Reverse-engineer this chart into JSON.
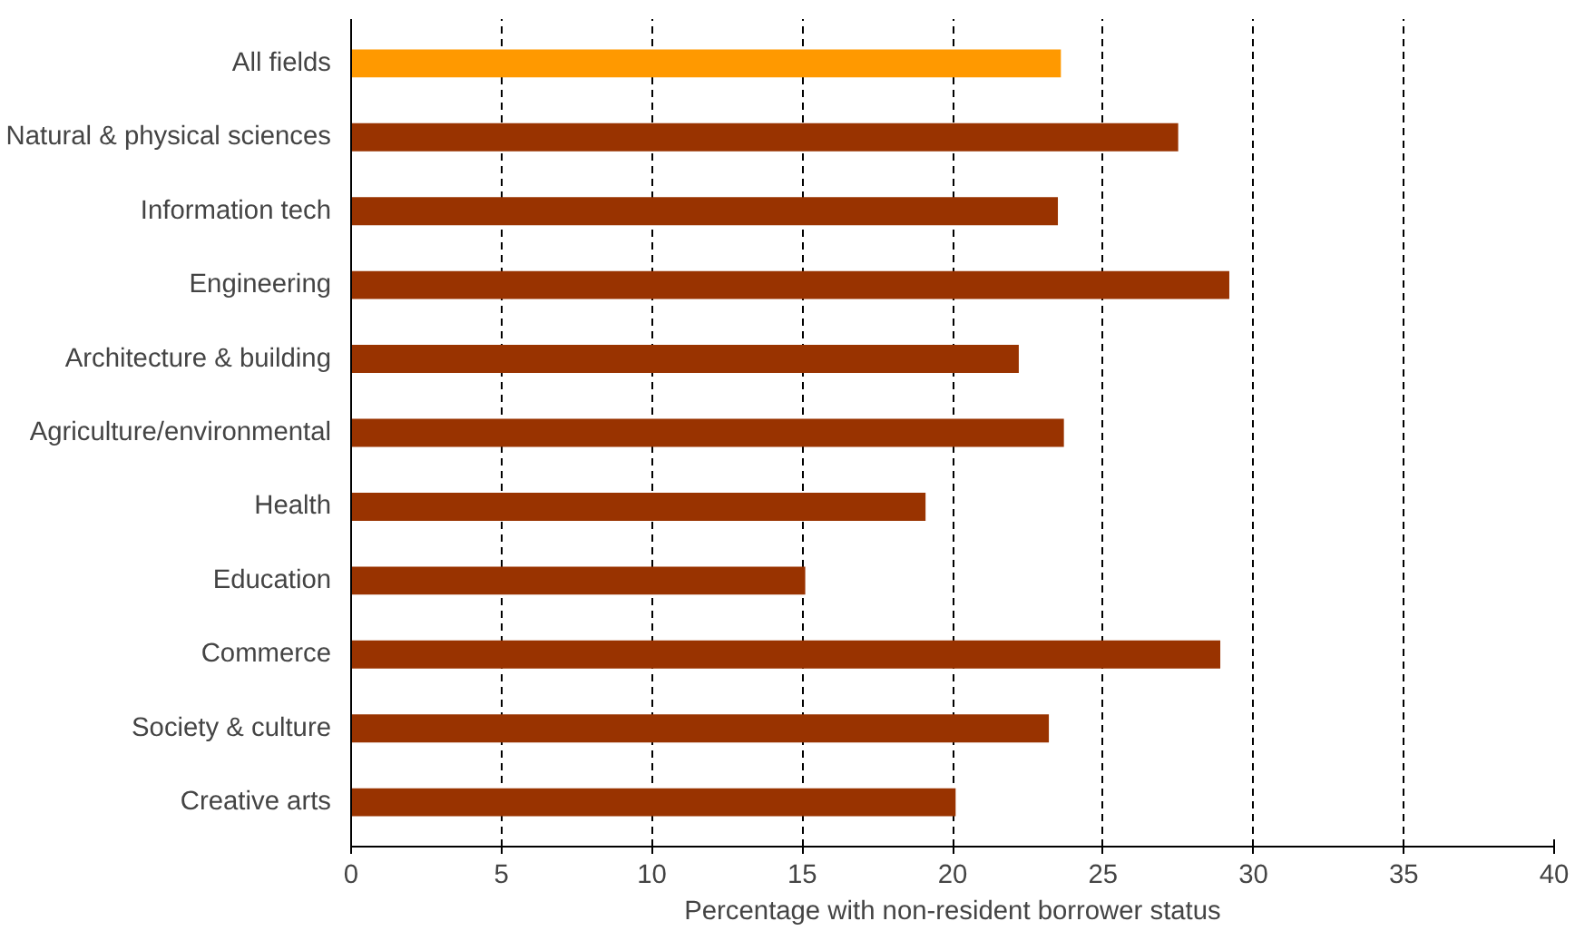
{
  "chart_data": {
    "type": "bar",
    "orientation": "horizontal",
    "xlabel": "Percentage with non-resident borrower status",
    "categories": [
      "All fields",
      "Natural & physical sciences",
      "Information tech",
      "Engineering",
      "Architecture & building",
      "Agriculture/environmental",
      "Health",
      "Education",
      "Commerce",
      "Society & culture",
      "Creative arts"
    ],
    "values": [
      23.6,
      27.5,
      23.5,
      29.2,
      22.2,
      23.7,
      19.1,
      15.1,
      28.9,
      23.2,
      20.1
    ],
    "colors": [
      "#ff9900",
      "#993300",
      "#993300",
      "#993300",
      "#993300",
      "#993300",
      "#993300",
      "#993300",
      "#993300",
      "#993300",
      "#993300"
    ],
    "xlim": [
      0,
      40
    ],
    "xticks": [
      0,
      5,
      10,
      15,
      20,
      25,
      30,
      35,
      40
    ],
    "grid": "x"
  }
}
